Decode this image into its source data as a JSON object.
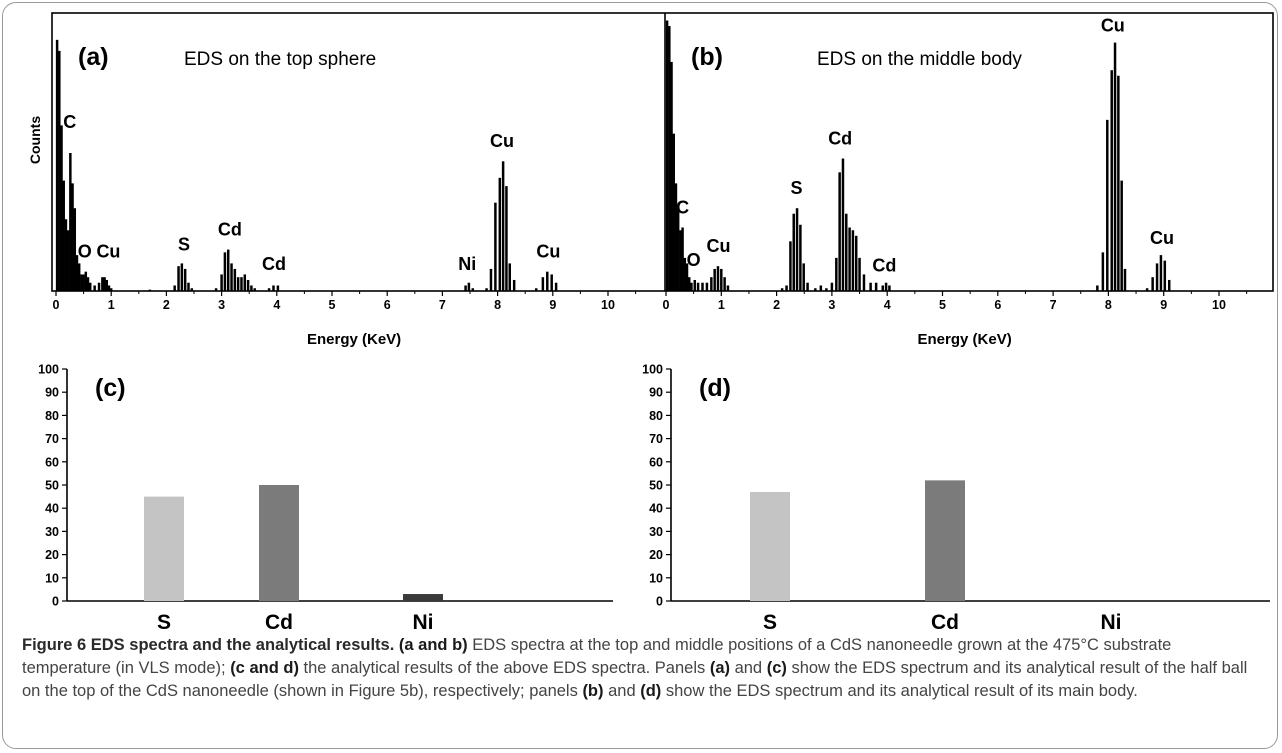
{
  "figure": {
    "caption_lead": "Figure 6 EDS spectra and the analytical results.",
    "caption_segments": [
      {
        "b": "(a and b)",
        "t": " EDS spectra at the top and middle positions of a CdS nanoneedle grown at the 475°C substrate temperature (in VLS mode); "
      },
      {
        "b": "(c and d)",
        "t": " the analytical results of the above EDS spectra. Panels "
      },
      {
        "b": "(a)",
        "t": " and "
      },
      {
        "b": "(c)",
        "t": " show the EDS spectrum and its analytical result of the half ball on the top of the CdS nanoneedle (shown in Figure 5b), respectively; panels "
      },
      {
        "b": "(b)",
        "t": " and "
      },
      {
        "b": "(d)",
        "t": " show the EDS spectrum and its analytical result of its main body."
      }
    ]
  },
  "colors": {
    "spectrum": "#000000",
    "bar_S": "#c4c4c4",
    "bar_Cd": "#7b7b7b",
    "bar_Ni": "#3a3a3a"
  },
  "chart_data": [
    {
      "id": "a",
      "type": "line",
      "panel_label": "(a)",
      "title": "EDS on the top sphere",
      "xlabel": "Energy (KeV)",
      "ylabel": "Counts",
      "xlim": [
        0,
        11
      ],
      "xticks": [
        0,
        1,
        2,
        3,
        4,
        5,
        6,
        7,
        8,
        9,
        10
      ],
      "ylim": [
        0,
        100
      ],
      "fill": true,
      "x": [
        0.02,
        0.06,
        0.1,
        0.14,
        0.18,
        0.22,
        0.26,
        0.3,
        0.34,
        0.38,
        0.42,
        0.46,
        0.5,
        0.54,
        0.58,
        0.62,
        0.7,
        0.78,
        0.84,
        0.88,
        0.92,
        0.96,
        1.0,
        1.1,
        1.5,
        1.7,
        1.9,
        2.15,
        2.22,
        2.28,
        2.34,
        2.4,
        2.46,
        2.52,
        2.9,
        3.0,
        3.06,
        3.12,
        3.18,
        3.24,
        3.3,
        3.36,
        3.42,
        3.48,
        3.54,
        3.6,
        3.7,
        3.86,
        3.94,
        4.02,
        4.1,
        7.35,
        7.42,
        7.48,
        7.55,
        7.62,
        7.8,
        7.88,
        7.96,
        8.04,
        8.1,
        8.16,
        8.22,
        8.3,
        8.4,
        8.7,
        8.82,
        8.9,
        8.98,
        9.06,
        9.2
      ],
      "y": [
        91,
        87,
        60,
        40,
        26,
        22,
        50,
        39,
        30,
        13,
        10,
        6,
        6,
        7,
        5,
        3,
        2,
        3,
        5,
        5,
        4,
        2,
        1,
        0,
        0,
        0.5,
        0,
        2,
        9,
        10,
        8,
        3,
        1,
        0,
        1,
        6,
        14,
        15,
        10,
        8,
        5,
        5,
        6,
        4,
        2,
        1,
        0,
        1,
        2,
        2,
        0,
        0,
        2,
        3,
        1,
        0,
        1,
        8,
        32,
        41,
        47,
        38,
        10,
        4,
        0,
        1,
        5,
        7,
        6,
        3,
        0
      ],
      "peak_labels": [
        {
          "text": "C",
          "x": 0.25,
          "y": 58
        },
        {
          "text": "O",
          "x": 0.52,
          "y": 11
        },
        {
          "text": "Cu",
          "x": 0.95,
          "y": 11
        },
        {
          "text": "S",
          "x": 2.32,
          "y": 13.5
        },
        {
          "text": "Cd",
          "x": 3.15,
          "y": 19
        },
        {
          "text": "Cd",
          "x": 3.95,
          "y": 6.5
        },
        {
          "text": "Ni",
          "x": 7.45,
          "y": 6.5
        },
        {
          "text": "Cu",
          "x": 8.08,
          "y": 51
        },
        {
          "text": "Cu",
          "x": 8.92,
          "y": 11
        }
      ]
    },
    {
      "id": "b",
      "type": "line",
      "panel_label": "(b)",
      "title": "EDS on the middle body",
      "xlabel": "Energy (KeV)",
      "ylabel": "",
      "xlim": [
        0,
        11
      ],
      "xticks": [
        0,
        1,
        2,
        3,
        4,
        5,
        6,
        7,
        8,
        9,
        10
      ],
      "ylim": [
        0,
        100
      ],
      "fill": true,
      "x": [
        0.02,
        0.06,
        0.1,
        0.14,
        0.18,
        0.22,
        0.26,
        0.3,
        0.34,
        0.38,
        0.42,
        0.46,
        0.52,
        0.58,
        0.66,
        0.74,
        0.82,
        0.88,
        0.94,
        1.0,
        1.06,
        1.12,
        1.2,
        2.1,
        2.18,
        2.25,
        2.31,
        2.37,
        2.43,
        2.49,
        2.56,
        2.7,
        2.8,
        2.9,
        3.0,
        3.08,
        3.14,
        3.2,
        3.26,
        3.32,
        3.38,
        3.44,
        3.5,
        3.58,
        3.7,
        3.8,
        3.92,
        3.98,
        4.04,
        4.1,
        7.8,
        7.9,
        7.98,
        8.06,
        8.12,
        8.18,
        8.24,
        8.3,
        8.4,
        8.7,
        8.8,
        8.88,
        8.95,
        9.02,
        9.1,
        9.2
      ],
      "y": [
        98,
        96,
        83,
        57,
        39,
        30,
        22,
        23,
        12,
        10,
        5,
        3,
        4,
        3,
        3,
        3,
        5,
        8,
        9,
        8,
        5,
        2,
        0,
        1,
        2,
        18,
        28,
        30,
        24,
        10,
        3,
        1,
        2,
        1,
        3,
        12,
        43,
        48,
        28,
        23,
        22,
        20,
        12,
        6,
        3,
        3,
        2,
        3,
        2,
        0,
        2,
        14,
        62,
        80,
        90,
        78,
        40,
        8,
        0,
        1,
        5,
        10,
        13,
        11,
        4,
        0
      ],
      "peak_labels": [
        {
          "text": "C",
          "x": 0.3,
          "y": 27
        },
        {
          "text": "O",
          "x": 0.5,
          "y": 8
        },
        {
          "text": "Cu",
          "x": 0.95,
          "y": 13
        },
        {
          "text": "S",
          "x": 2.36,
          "y": 34
        },
        {
          "text": "Cd",
          "x": 3.15,
          "y": 52
        },
        {
          "text": "Cd",
          "x": 3.95,
          "y": 6
        },
        {
          "text": "Cu",
          "x": 8.08,
          "y": 93
        },
        {
          "text": "Cu",
          "x": 8.97,
          "y": 16
        }
      ]
    },
    {
      "id": "c",
      "type": "bar",
      "panel_label": "(c)",
      "title": "",
      "xlabel": "",
      "ylabel": "",
      "categories": [
        "S",
        "Cd",
        "Ni"
      ],
      "values": [
        45,
        50,
        3
      ],
      "ylim": [
        0,
        100
      ],
      "yticks": [
        0,
        10,
        20,
        30,
        40,
        50,
        60,
        70,
        80,
        90,
        100
      ]
    },
    {
      "id": "d",
      "type": "bar",
      "panel_label": "(d)",
      "title": "",
      "xlabel": "",
      "ylabel": "",
      "categories": [
        "S",
        "Cd",
        "Ni"
      ],
      "values": [
        47,
        52,
        0
      ],
      "ylim": [
        0,
        100
      ],
      "yticks": [
        0,
        10,
        20,
        30,
        40,
        50,
        60,
        70,
        80,
        90,
        100
      ]
    }
  ]
}
